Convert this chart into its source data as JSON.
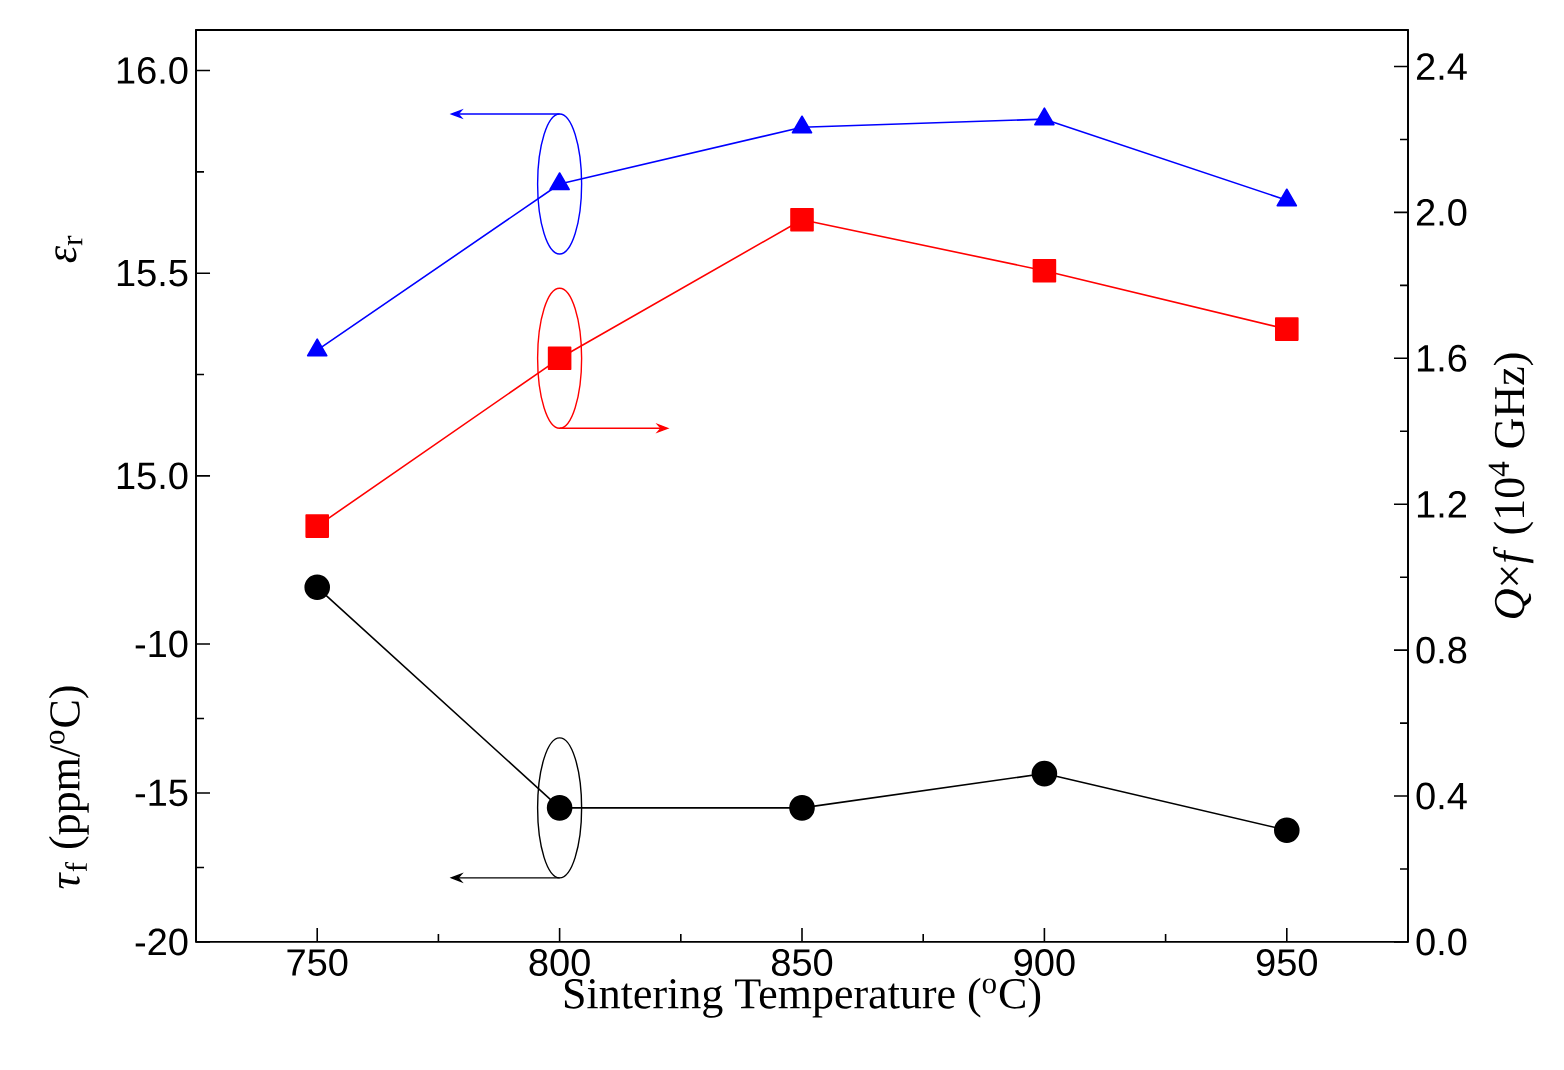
{
  "chart_data": {
    "type": "line",
    "xlabel": "Sintering Temperature ($^{o}$C)",
    "ylabel": "*τ*$_{f}$ (ppm/$^{o}$C)",
    "y2label": "*Q*×*f* (10$^{4}$ GHz)",
    "y3label": "*ε*$_{r}$",
    "x": [
      750,
      800,
      850,
      900,
      950
    ],
    "xlim": [
      725,
      975
    ],
    "xticks": [
      750,
      800,
      850,
      900,
      950
    ],
    "ylim": [
      -20,
      10.6
    ],
    "yticks": [
      -20,
      -15,
      -10
    ],
    "y2lim": [
      0,
      2.5
    ],
    "y2ticks": [
      {
        "value": 0,
        "label": "0.0"
      },
      0.4,
      0.8,
      1.2,
      1.6,
      {
        "value": 2,
        "label": "2.0"
      },
      2.4
    ],
    "y3lim": [
      13.85,
      16.1
    ],
    "y3ticks": [
      {
        "value": 15,
        "label": "15.0"
      },
      {
        "value": 15.5,
        "label": "15.5"
      },
      {
        "value": 16,
        "label": "16.0"
      }
    ],
    "line_style": "solid",
    "series": [
      {
        "color": "#0000ff",
        "marker": "triangle",
        "axis": "y3",
        "values": [
          15.31,
          15.72,
          15.86,
          15.88,
          15.68
        ]
      },
      {
        "color": "#ff0000",
        "marker": "square",
        "axis": "y2",
        "values": [
          1.14,
          1.6,
          1.98,
          1.84,
          1.68
        ]
      },
      {
        "color": "#000000",
        "marker": "circle",
        "axis": "y",
        "values": [
          -8.1,
          -15.5,
          -15.5,
          -14.35,
          -16.25
        ]
      }
    ]
  }
}
